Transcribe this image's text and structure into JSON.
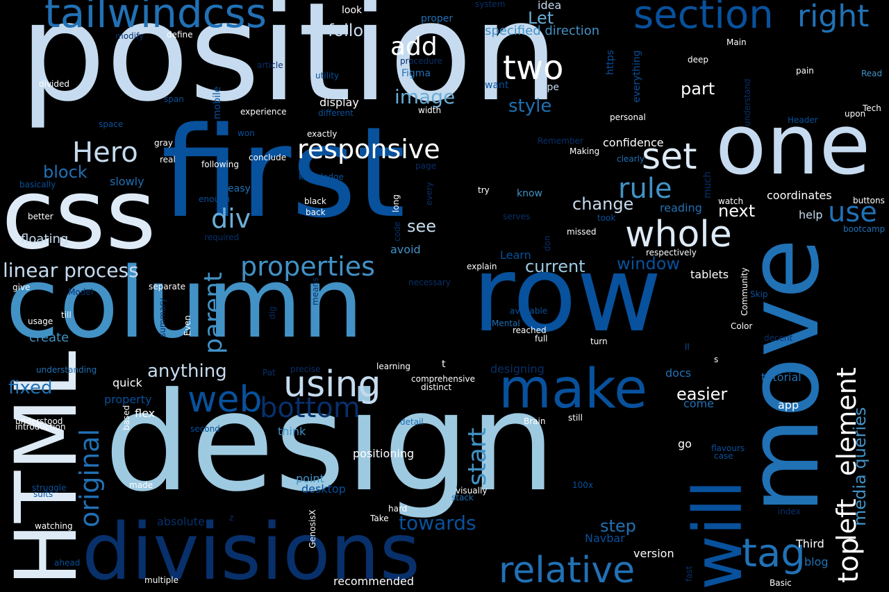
{
  "palette": [
    "#08306b",
    "#08519c",
    "#2171b5",
    "#4292c6",
    "#6baed6",
    "#9ecae1",
    "#c6dbef",
    "#deebf7",
    "#ffffff"
  ],
  "words": [
    {
      "text": "position",
      "color": "#c6dbef"
    },
    {
      "text": "first",
      "color": "#08519c"
    },
    {
      "text": "design",
      "color": "#9ecae1"
    },
    {
      "text": "column",
      "color": "#4292c6"
    },
    {
      "text": "row",
      "color": "#08519c"
    },
    {
      "text": "css",
      "color": "#deebf7"
    },
    {
      "text": "one",
      "color": "#c6dbef"
    },
    {
      "text": "move",
      "color": "#2171b5"
    },
    {
      "text": "divisions",
      "color": "#08306b"
    },
    {
      "text": "HTML",
      "color": "#deebf7"
    },
    {
      "text": "will",
      "color": "#08519c"
    },
    {
      "text": "tailwindcss",
      "color": "#2171b5"
    },
    {
      "text": "section",
      "color": "#08519c"
    },
    {
      "text": "right",
      "color": "#2171b5"
    },
    {
      "text": "make",
      "color": "#08519c"
    },
    {
      "text": "whole",
      "color": "#deebf7"
    },
    {
      "text": "relative",
      "color": "#2171b5"
    },
    {
      "text": "web",
      "color": "#08519c"
    },
    {
      "text": "using",
      "color": "#c6dbef"
    },
    {
      "text": "properties",
      "color": "#4292c6"
    },
    {
      "text": "responsive",
      "color": "#ffffff"
    },
    {
      "text": "set",
      "color": "#deebf7"
    },
    {
      "text": "two",
      "color": "#ffffff"
    },
    {
      "text": "Hero",
      "color": "#c6dbef"
    },
    {
      "text": "element",
      "color": "#ffffff"
    },
    {
      "text": "left",
      "color": "#ffffff"
    },
    {
      "text": "top",
      "color": "#ffffff"
    },
    {
      "text": "rule",
      "color": "#4292c6"
    },
    {
      "text": "div",
      "color": "#6baed6"
    },
    {
      "text": "tag",
      "color": "#2171b5"
    },
    {
      "text": "original",
      "color": "#2171b5"
    },
    {
      "text": "parent",
      "color": "#4292c6"
    },
    {
      "text": "bottom",
      "color": "#08306b"
    },
    {
      "text": "start",
      "color": "#4292c6"
    },
    {
      "text": "add",
      "color": "#ffffff"
    },
    {
      "text": "linear process",
      "color": "#c6dbef"
    },
    {
      "text": "use",
      "color": "#2171b5"
    },
    {
      "text": "image",
      "color": "#6baed6"
    },
    {
      "text": "media queries",
      "color": "#4292c6"
    },
    {
      "text": "style",
      "color": "#2171b5"
    },
    {
      "text": "part",
      "color": "#ffffff"
    },
    {
      "text": "change",
      "color": "#c6dbef"
    },
    {
      "text": "next",
      "color": "#ffffff"
    },
    {
      "text": "towards",
      "color": "#08519c"
    },
    {
      "text": "step",
      "color": "#2171b5"
    },
    {
      "text": "fixed",
      "color": "#2171b5"
    },
    {
      "text": "anything",
      "color": "#c6dbef"
    },
    {
      "text": "current",
      "color": "#9ecae1"
    },
    {
      "text": "window",
      "color": "#08519c"
    },
    {
      "text": "easier",
      "color": "#ffffff"
    },
    {
      "text": "follow",
      "color": "#c6dbef"
    },
    {
      "text": "block",
      "color": "#2171b5"
    },
    {
      "text": "see",
      "color": "#c6dbef"
    },
    {
      "text": "Let",
      "color": "#6baed6"
    },
    {
      "text": "floating",
      "color": "#c6dbef"
    },
    {
      "text": "specified direction",
      "color": "#4292c6"
    },
    {
      "text": "positioning",
      "color": "#ffffff"
    },
    {
      "text": "coordinates",
      "color": "#ffffff"
    },
    {
      "text": "confidence",
      "color": "#ffffff"
    },
    {
      "text": "create",
      "color": "#4292c6"
    },
    {
      "text": "docs",
      "color": "#2171b5"
    },
    {
      "text": "tutorial",
      "color": "#2171b5"
    },
    {
      "text": "display",
      "color": "#ffffff"
    },
    {
      "text": "reading",
      "color": "#2171b5"
    },
    {
      "text": "avoid",
      "color": "#4292c6"
    },
    {
      "text": "flex",
      "color": "#ffffff"
    },
    {
      "text": "quick",
      "color": "#ffffff"
    },
    {
      "text": "tablets",
      "color": "#ffffff"
    },
    {
      "text": "help",
      "color": "#c6dbef"
    },
    {
      "text": "idea",
      "color": "#c6dbef"
    },
    {
      "text": "hope",
      "color": "#c6dbef"
    },
    {
      "text": "easy",
      "color": "#2171b5"
    },
    {
      "text": "slowly",
      "color": "#2171b5"
    },
    {
      "text": "know",
      "color": "#4292c6"
    },
    {
      "text": "want",
      "color": "#08519c"
    },
    {
      "text": "Figma",
      "color": "#2171b5"
    },
    {
      "text": "proper",
      "color": "#2171b5"
    },
    {
      "text": "look",
      "color": "#ffffff"
    },
    {
      "text": "point",
      "color": "#4292c6"
    },
    {
      "text": "desktop",
      "color": "#08519c"
    },
    {
      "text": "think",
      "color": "#4292c6"
    },
    {
      "text": "property",
      "color": "#08519c"
    },
    {
      "text": "absolute",
      "color": "#08306b"
    },
    {
      "text": "designing",
      "color": "#08306b"
    },
    {
      "text": "Learn",
      "color": "#08519c"
    },
    {
      "text": "Third",
      "color": "#ffffff"
    },
    {
      "text": "blog",
      "color": "#2171b5"
    },
    {
      "text": "version",
      "color": "#ffffff"
    },
    {
      "text": "recommended",
      "color": "#ffffff"
    },
    {
      "text": "Navbar",
      "color": "#08519c"
    },
    {
      "text": "come",
      "color": "#2171b5"
    },
    {
      "text": "app",
      "color": "#ffffff"
    },
    {
      "text": "go",
      "color": "#ffffff"
    },
    {
      "text": "t",
      "color": "#ffffff"
    },
    {
      "text": "https",
      "color": "#08519c"
    },
    {
      "text": "everything",
      "color": "#08519c"
    },
    {
      "text": "mobile",
      "color": "#08519c"
    },
    {
      "text": "much",
      "color": "#08306b"
    },
    {
      "text": "experience",
      "color": "#ffffff"
    },
    {
      "text": "different",
      "color": "#08519c"
    },
    {
      "text": "width",
      "color": "#ffffff"
    },
    {
      "text": "utility",
      "color": "#08519c"
    },
    {
      "text": "article",
      "color": "#08306b"
    },
    {
      "text": "procedure",
      "color": "#08306b"
    },
    {
      "text": "system",
      "color": "#08306b"
    },
    {
      "text": "modify",
      "color": "#08306b"
    },
    {
      "text": "define",
      "color": "#ffffff"
    },
    {
      "text": "divided",
      "color": "#ffffff"
    },
    {
      "text": "span",
      "color": "#08519c"
    },
    {
      "text": "space",
      "color": "#08519c"
    },
    {
      "text": "gray",
      "color": "#ffffff"
    },
    {
      "text": "real",
      "color": "#ffffff"
    },
    {
      "text": "won",
      "color": "#08519c"
    },
    {
      "text": "conclude",
      "color": "#ffffff"
    },
    {
      "text": "following",
      "color": "#ffffff"
    },
    {
      "text": "exactly",
      "color": "#ffffff"
    },
    {
      "text": "basically",
      "color": "#08519c"
    },
    {
      "text": "enough",
      "color": "#08519c"
    },
    {
      "text": "knowledge",
      "color": "#08519c"
    },
    {
      "text": "page",
      "color": "#08306b"
    },
    {
      "text": "black",
      "color": "#ffffff"
    },
    {
      "text": "back",
      "color": "#ffffff"
    },
    {
      "text": "better",
      "color": "#ffffff"
    },
    {
      "text": "required",
      "color": "#08306b"
    },
    {
      "text": "long",
      "color": "#ffffff"
    },
    {
      "text": "code",
      "color": "#08306b"
    },
    {
      "text": "every",
      "color": "#08306b"
    },
    {
      "text": "serves",
      "color": "#08306b"
    },
    {
      "text": "took",
      "color": "#08519c"
    },
    {
      "text": "missed",
      "color": "#ffffff"
    },
    {
      "text": "don",
      "color": "#08306b"
    },
    {
      "text": "explain",
      "color": "#ffffff"
    },
    {
      "text": "respectively",
      "color": "#ffffff"
    },
    {
      "text": "Making",
      "color": "#ffffff"
    },
    {
      "text": "clearly",
      "color": "#2171b5"
    },
    {
      "text": "Remember",
      "color": "#08306b"
    },
    {
      "text": "personal",
      "color": "#ffffff"
    },
    {
      "text": "Main",
      "color": "#ffffff"
    },
    {
      "text": "deep",
      "color": "#ffffff"
    },
    {
      "text": "understand",
      "color": "#08306b"
    },
    {
      "text": "pain",
      "color": "#ffffff"
    },
    {
      "text": "Read",
      "color": "#4292c6"
    },
    {
      "text": "Tech",
      "color": "#ffffff"
    },
    {
      "text": "upon",
      "color": "#ffffff"
    },
    {
      "text": "Header",
      "color": "#08519c"
    },
    {
      "text": "try",
      "color": "#ffffff"
    },
    {
      "text": "watch",
      "color": "#ffffff"
    },
    {
      "text": "buttons",
      "color": "#ffffff"
    },
    {
      "text": "bootcamp",
      "color": "#2171b5"
    },
    {
      "text": "Community",
      "color": "#ffffff"
    },
    {
      "text": "Skip",
      "color": "#08519c"
    },
    {
      "text": "Color",
      "color": "#ffffff"
    },
    {
      "text": "decent",
      "color": "#08306b"
    },
    {
      "text": "ll",
      "color": "#08519c"
    },
    {
      "text": "s",
      "color": "#ffffff"
    },
    {
      "text": "turn",
      "color": "#ffffff"
    },
    {
      "text": "full",
      "color": "#ffffff"
    },
    {
      "text": "reached",
      "color": "#ffffff"
    },
    {
      "text": "Mental",
      "color": "#2171b5"
    },
    {
      "text": "available",
      "color": "#08519c"
    },
    {
      "text": "necessary",
      "color": "#08306b"
    },
    {
      "text": "means",
      "color": "#08306b"
    },
    {
      "text": "dig",
      "color": "#08306b"
    },
    {
      "text": "summary",
      "color": "#08306b"
    },
    {
      "text": "Even",
      "color": "#ffffff"
    },
    {
      "text": "separate",
      "color": "#ffffff"
    },
    {
      "text": "give",
      "color": "#ffffff"
    },
    {
      "text": "Model",
      "color": "#08306b"
    },
    {
      "text": "till",
      "color": "#ffffff"
    },
    {
      "text": "usage",
      "color": "#ffffff"
    },
    {
      "text": "understanding",
      "color": "#2171b5"
    },
    {
      "text": "learning",
      "color": "#ffffff"
    },
    {
      "text": "precise",
      "color": "#08306b"
    },
    {
      "text": "Pat",
      "color": "#08306b"
    },
    {
      "text": "comprehensive",
      "color": "#ffffff"
    },
    {
      "text": "distinct",
      "color": "#ffffff"
    },
    {
      "text": "detail",
      "color": "#2171b5"
    },
    {
      "text": "Brain",
      "color": "#ffffff"
    },
    {
      "text": "still",
      "color": "#ffffff"
    },
    {
      "text": "second",
      "color": "#08519c"
    },
    {
      "text": "based",
      "color": "#ffffff"
    },
    {
      "text": "understood",
      "color": "#ffffff"
    },
    {
      "text": "introduction",
      "color": "#ffffff"
    },
    {
      "text": "made",
      "color": "#ffffff"
    },
    {
      "text": "struggle",
      "color": "#08519c"
    },
    {
      "text": "suits",
      "color": "#08519c"
    },
    {
      "text": "visually",
      "color": "#ffffff"
    },
    {
      "text": "stack",
      "color": "#2171b5"
    },
    {
      "text": "100x",
      "color": "#08519c"
    },
    {
      "text": "hard",
      "color": "#ffffff"
    },
    {
      "text": "Take",
      "color": "#ffffff"
    },
    {
      "text": "GenosisX",
      "color": "#ffffff"
    },
    {
      "text": "z",
      "color": "#08306b"
    },
    {
      "text": "watching",
      "color": "#ffffff"
    },
    {
      "text": "ahead",
      "color": "#08519c"
    },
    {
      "text": "multiple",
      "color": "#ffffff"
    },
    {
      "text": "flavours",
      "color": "#08519c"
    },
    {
      "text": "case",
      "color": "#08519c"
    },
    {
      "text": "index",
      "color": "#08306b"
    },
    {
      "text": "fast",
      "color": "#08306b"
    },
    {
      "text": "Basic",
      "color": "#ffffff"
    }
  ]
}
